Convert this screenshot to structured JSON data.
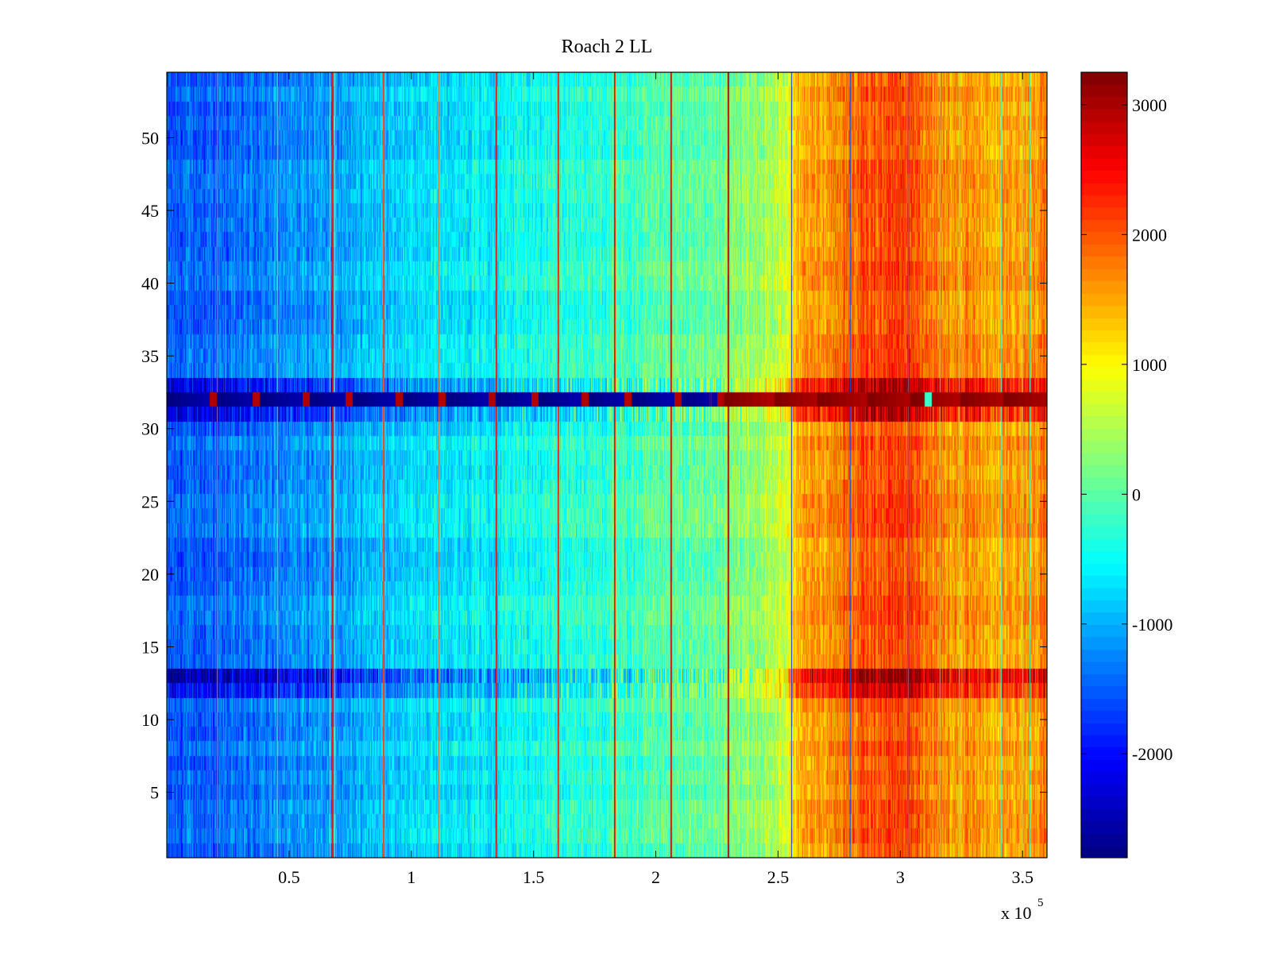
{
  "chart_data": {
    "type": "heatmap",
    "title": "Roach 2 LL",
    "xlabel": "",
    "ylabel": "",
    "x_exponent_label": "x 10",
    "x_exponent_power": "5",
    "xlim": [
      0,
      3.6
    ],
    "ylim": [
      0.5,
      54.5
    ],
    "x_ticks": [
      {
        "value": 0.5,
        "label": "0.5"
      },
      {
        "value": 1.0,
        "label": "1"
      },
      {
        "value": 1.5,
        "label": "1.5"
      },
      {
        "value": 2.0,
        "label": "2"
      },
      {
        "value": 2.5,
        "label": "2.5"
      },
      {
        "value": 3.0,
        "label": "3"
      },
      {
        "value": 3.5,
        "label": "3.5"
      }
    ],
    "y_ticks": [
      {
        "value": 5,
        "label": "5"
      },
      {
        "value": 10,
        "label": "10"
      },
      {
        "value": 15,
        "label": "15"
      },
      {
        "value": 20,
        "label": "20"
      },
      {
        "value": 25,
        "label": "25"
      },
      {
        "value": 30,
        "label": "30"
      },
      {
        "value": 35,
        "label": "35"
      },
      {
        "value": 40,
        "label": "40"
      },
      {
        "value": 45,
        "label": "45"
      },
      {
        "value": 50,
        "label": "50"
      }
    ],
    "colorbar": {
      "colormap": "jet",
      "range": [
        -2800,
        3250
      ],
      "ticks": [
        {
          "value": -2000,
          "label": "-2000"
        },
        {
          "value": -1000,
          "label": "-1000"
        },
        {
          "value": 0,
          "label": "0"
        },
        {
          "value": 1000,
          "label": "1000"
        },
        {
          "value": 2000,
          "label": "2000"
        },
        {
          "value": 3000,
          "label": "3000"
        }
      ]
    },
    "n_rows": 54,
    "base_profile": [
      {
        "x": 0.0,
        "v": -1500
      },
      {
        "x": 0.2,
        "v": -1450
      },
      {
        "x": 0.45,
        "v": -1250
      },
      {
        "x": 0.65,
        "v": -1100
      },
      {
        "x": 0.85,
        "v": -850
      },
      {
        "x": 1.2,
        "v": -600
      },
      {
        "x": 1.6,
        "v": -350
      },
      {
        "x": 2.0,
        "v": -100
      },
      {
        "x": 2.3,
        "v": 150
      },
      {
        "x": 2.5,
        "v": 500
      },
      {
        "x": 2.58,
        "v": 1350
      },
      {
        "x": 2.8,
        "v": 1900
      },
      {
        "x": 3.0,
        "v": 2150
      },
      {
        "x": 3.2,
        "v": 1650
      },
      {
        "x": 3.4,
        "v": 1450
      },
      {
        "x": 3.6,
        "v": 1750
      }
    ],
    "stripes": [
      {
        "x": 0.205,
        "v": 1800
      },
      {
        "x": 0.45,
        "v": 1500
      },
      {
        "x": 0.665,
        "v": 800
      },
      {
        "x": 0.675,
        "v": 2600
      },
      {
        "x": 0.685,
        "v": 1200
      },
      {
        "x": 0.885,
        "v": 2200
      },
      {
        "x": 1.11,
        "v": 2000
      },
      {
        "x": 1.345,
        "v": 2600
      },
      {
        "x": 1.6,
        "v": 2500
      },
      {
        "x": 1.83,
        "v": 2700
      },
      {
        "x": 2.06,
        "v": 2800
      },
      {
        "x": 2.295,
        "v": 3000
      },
      {
        "x": 2.555,
        "v": -1800
      },
      {
        "x": 2.795,
        "v": -1500
      },
      {
        "x": 3.03,
        "v": -1200
      },
      {
        "x": 3.16,
        "v": -500
      },
      {
        "x": 3.24,
        "v": -300
      },
      {
        "x": 3.41,
        "v": -200
      },
      {
        "x": 3.5,
        "v": -300
      },
      {
        "x": 3.53,
        "v": -200
      }
    ],
    "row_anomalies": [
      {
        "rows": [
          32
        ],
        "type": "saturated_band",
        "low_value": -2800,
        "high_value": 3250,
        "switch_x": 2.27
      },
      {
        "rows": [
          31,
          33
        ],
        "type": "amplified",
        "factor": 1.35
      },
      {
        "rows": [
          13
        ],
        "type": "amplified",
        "factor": 1.55
      },
      {
        "rows": [
          12
        ],
        "type": "amplified",
        "factor": 1.25
      }
    ]
  }
}
